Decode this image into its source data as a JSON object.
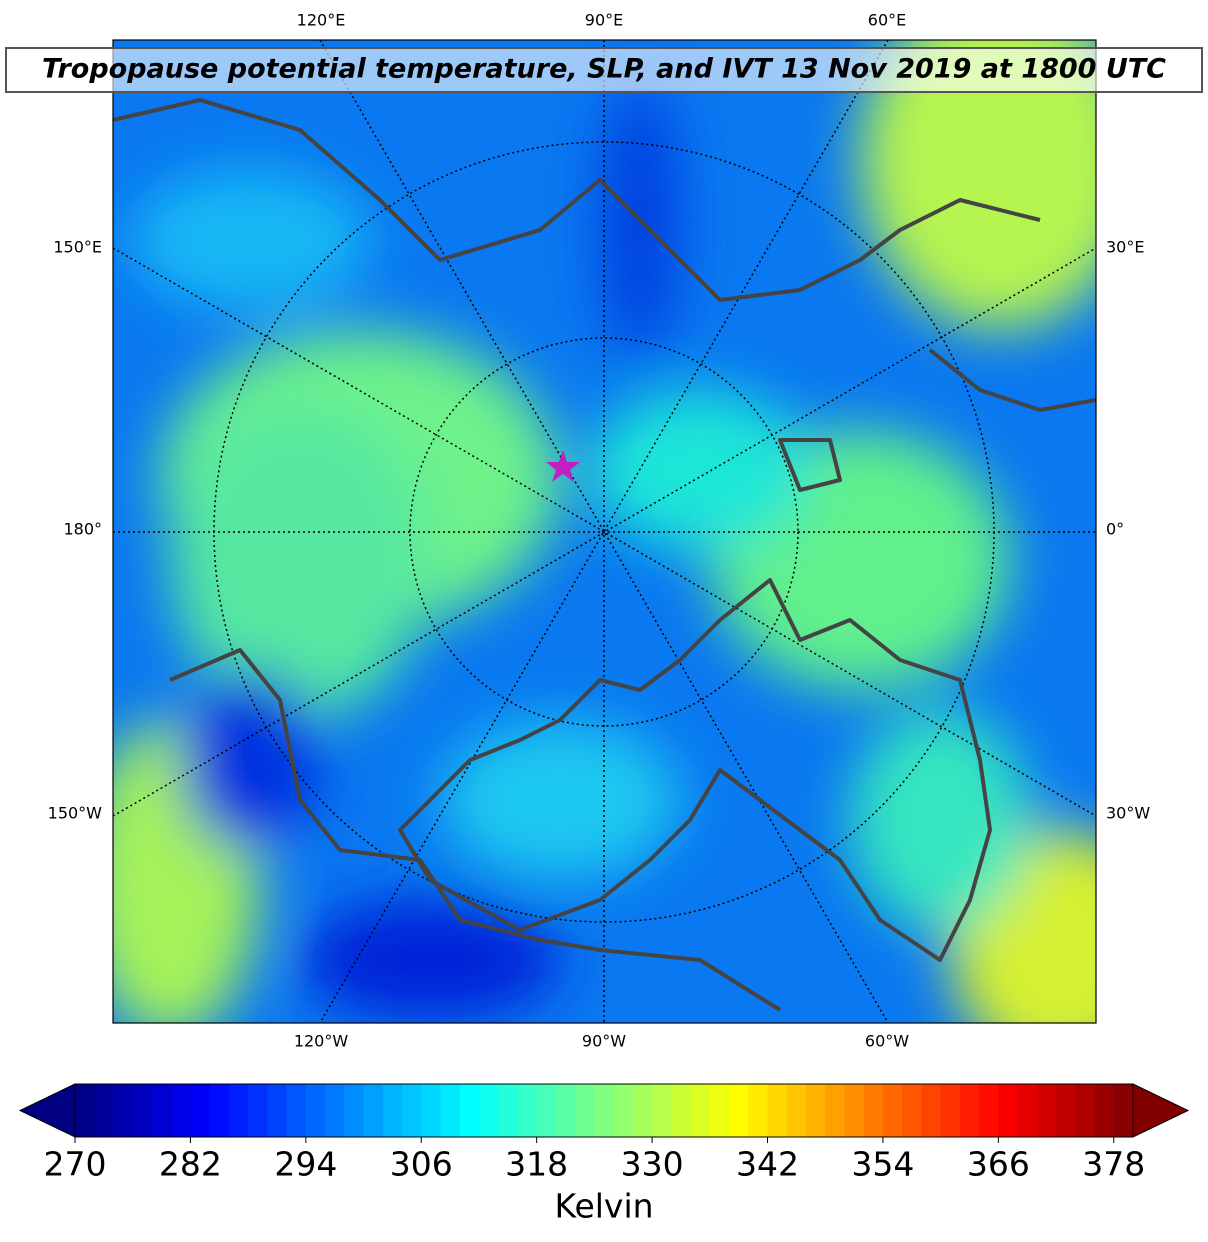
{
  "title": "Tropopause potential temperature, SLP, and IVT 13 Nov 2019 at 1800 UTC",
  "map": {
    "top_labels": [
      "120°E",
      "90°E",
      "60°E"
    ],
    "bottom_labels": [
      "120°W",
      "90°W",
      "60°W"
    ],
    "left_labels": [
      "150°E",
      "180°",
      "150°W"
    ],
    "right_labels": [
      "30°E",
      "0°",
      "30°W"
    ]
  },
  "colorbar": {
    "label": "Kelvin",
    "colormap": "jet",
    "extend": "both",
    "lim": [
      270,
      380
    ],
    "ticks": [
      270,
      282,
      294,
      306,
      318,
      330,
      342,
      354,
      366,
      378
    ]
  }
}
